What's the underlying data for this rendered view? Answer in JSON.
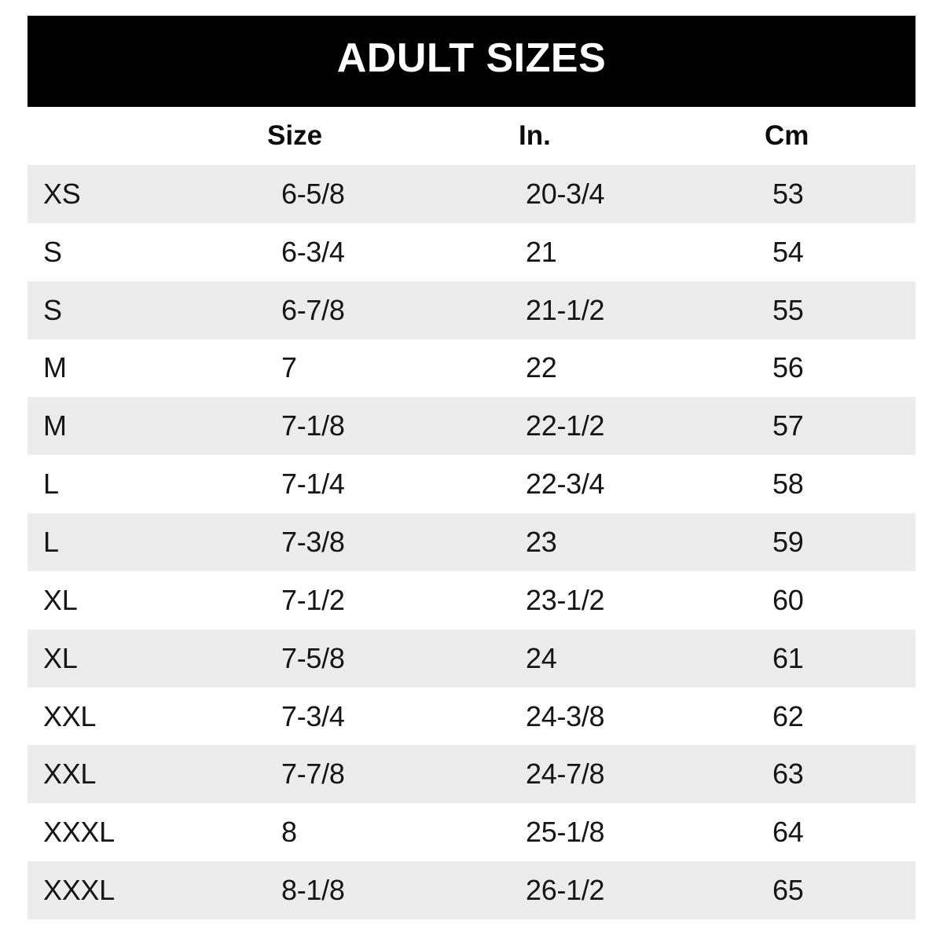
{
  "chart_data": {
    "type": "table",
    "title": "ADULT SIZES",
    "columns": [
      "Size",
      "In.",
      "Cm"
    ],
    "rows": [
      {
        "size_label": "XS",
        "hat_size": "6-5/8",
        "inches": "20-3/4",
        "cm": "53"
      },
      {
        "size_label": "S",
        "hat_size": "6-3/4",
        "inches": "21",
        "cm": "54"
      },
      {
        "size_label": "S",
        "hat_size": "6-7/8",
        "inches": "21-1/2",
        "cm": "55"
      },
      {
        "size_label": "M",
        "hat_size": "7",
        "inches": "22",
        "cm": "56"
      },
      {
        "size_label": "M",
        "hat_size": "7-1/8",
        "inches": "22-1/2",
        "cm": "57"
      },
      {
        "size_label": "L",
        "hat_size": "7-1/4",
        "inches": "22-3/4",
        "cm": "58"
      },
      {
        "size_label": "L",
        "hat_size": "7-3/8",
        "inches": "23",
        "cm": "59"
      },
      {
        "size_label": "XL",
        "hat_size": "7-1/2",
        "inches": "23-1/2",
        "cm": "60"
      },
      {
        "size_label": "XL",
        "hat_size": "7-5/8",
        "inches": "24",
        "cm": "61"
      },
      {
        "size_label": "XXL",
        "hat_size": "7-3/4",
        "inches": "24-3/8",
        "cm": "62"
      },
      {
        "size_label": "XXL",
        "hat_size": "7-7/8",
        "inches": "24-7/8",
        "cm": "63"
      },
      {
        "size_label": "XXXL",
        "hat_size": "8",
        "inches": "25-1/8",
        "cm": "64"
      },
      {
        "size_label": "XXXL",
        "hat_size": "8-1/8",
        "inches": "26-1/2",
        "cm": "65"
      }
    ],
    "layout": {
      "alternating_row_shading": true,
      "shaded_rows": "odd",
      "header_banner": true
    }
  },
  "colors": {
    "banner_bg": "#000000",
    "banner_text": "#ffffff",
    "row_alt_bg": "#ececec",
    "text": "#161616"
  }
}
